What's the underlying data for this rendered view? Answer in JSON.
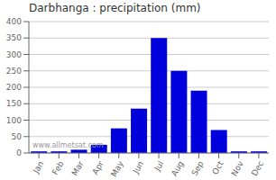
{
  "chart_data": {
    "type": "bar",
    "title": "Darbhanga : precipitation (mm)",
    "categories": [
      "Jan",
      "Feb",
      "Mar",
      "Apr",
      "May",
      "Jun",
      "Jul",
      "Aug",
      "Sep",
      "Oct",
      "Nov",
      "Dec"
    ],
    "values": [
      5,
      5,
      10,
      25,
      75,
      135,
      350,
      250,
      190,
      70,
      5,
      5
    ],
    "color": "#0000DD",
    "ylim": [
      0,
      400
    ],
    "yticks": [
      0,
      50,
      100,
      150,
      200,
      250,
      300,
      350,
      400
    ],
    "grid": true,
    "annotations": [
      "www.allmetsat.com"
    ]
  }
}
